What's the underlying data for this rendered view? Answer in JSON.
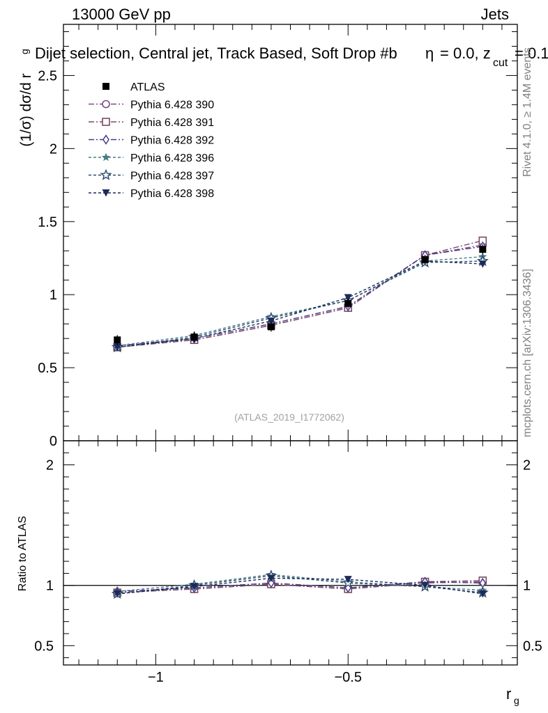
{
  "header": {
    "left": "13000 GeV pp",
    "right": "Jets",
    "subtitle": "Dijet selection, Central jet, Track Based, Soft Drop #b",
    "subtitle_cont": "= 0.0, z",
    "subtitle_sub": "cut",
    "subtitle_end": "= 0.1",
    "beta_symbol": "η"
  },
  "side_labels": {
    "rivet": "Rivet 4.1.0, ≥ 1.4M events",
    "mcplots": "mcplots.cern.ch [arXiv:1306.3436]"
  },
  "analysis_id": "(ATLAS_2019_I1772062)",
  "colors": {
    "atlas": "#000000",
    "p390": "#7a4a86",
    "p391": "#7a4a66",
    "p392": "#4a3a86",
    "p396": "#4a7a86",
    "p397": "#2a4a6a",
    "p398": "#1a2a5a",
    "ref_line": "#000000"
  },
  "chart_data": [
    {
      "type": "line",
      "panel": "main",
      "ylabel_main": "(1/σ) dσ/d r",
      "ylabel_sub": "g",
      "xlim": [
        -1.24,
        -0.06
      ],
      "ylim": [
        0,
        2.85
      ],
      "yticks": [
        0,
        0.5,
        1,
        1.5,
        2,
        2.5
      ],
      "ytick_labels": [
        "0",
        "0.5",
        "1",
        "1.5",
        "2",
        "2.5"
      ],
      "x": [
        -1.1,
        -0.9,
        -0.7,
        -0.5,
        -0.3,
        -0.15
      ],
      "series": [
        {
          "name": "ATLAS",
          "key": "atlas",
          "marker": "square-filled",
          "dash": "none",
          "values": [
            0.69,
            0.71,
            0.78,
            0.94,
            1.24,
            1.31
          ]
        },
        {
          "name": "Pythia 6.428 390",
          "key": "p390",
          "marker": "circle-open",
          "dash": "8,3,2,3",
          "values": [
            0.65,
            0.69,
            0.79,
            0.91,
            1.27,
            1.34
          ]
        },
        {
          "name": "Pythia 6.428 391",
          "key": "p391",
          "marker": "square-open",
          "dash": "8,3,2,3",
          "values": [
            0.64,
            0.69,
            0.79,
            0.91,
            1.27,
            1.37
          ]
        },
        {
          "name": "Pythia 6.428 392",
          "key": "p392",
          "marker": "diamond-open",
          "dash": "8,3,2,3",
          "values": [
            0.65,
            0.7,
            0.8,
            0.92,
            1.27,
            1.33
          ]
        },
        {
          "name": "Pythia 6.428 396",
          "key": "p396",
          "marker": "star-filled",
          "dash": "4,3",
          "values": [
            0.65,
            0.72,
            0.85,
            0.96,
            1.23,
            1.26
          ]
        },
        {
          "name": "Pythia 6.428 397",
          "key": "p397",
          "marker": "star-open",
          "dash": "4,3",
          "values": [
            0.64,
            0.71,
            0.84,
            0.96,
            1.22,
            1.23
          ]
        },
        {
          "name": "Pythia 6.428 398",
          "key": "p398",
          "marker": "triangle-down-filled",
          "dash": "4,3",
          "values": [
            0.64,
            0.7,
            0.82,
            0.98,
            1.23,
            1.21
          ]
        }
      ]
    },
    {
      "type": "line",
      "panel": "ratio",
      "ylabel": "Ratio to ATLAS",
      "xlabel_main": "r",
      "xlabel_sub": "g",
      "xlim": [
        -1.24,
        -0.06
      ],
      "ylim": [
        0.34,
        2.2
      ],
      "yticks": [
        0.5,
        1,
        2
      ],
      "ytick_labels": [
        "0.5",
        "1",
        "2"
      ],
      "xticks": [
        -1,
        -0.5
      ],
      "xtick_labels": [
        "−1",
        "−0.5"
      ],
      "reference": 1,
      "x": [
        -1.1,
        -0.9,
        -0.7,
        -0.5,
        -0.3,
        -0.15
      ],
      "series": [
        {
          "name": "Pythia 6.428 390",
          "key": "p390",
          "values": [
            0.94,
            0.97,
            1.01,
            0.97,
            1.02,
            1.03
          ]
        },
        {
          "name": "Pythia 6.428 391",
          "key": "p391",
          "values": [
            0.94,
            0.97,
            1.01,
            0.97,
            1.03,
            1.04
          ]
        },
        {
          "name": "Pythia 6.428 392",
          "key": "p392",
          "values": [
            0.95,
            0.98,
            1.02,
            0.98,
            1.03,
            1.02
          ]
        },
        {
          "name": "Pythia 6.428 396",
          "key": "p396",
          "values": [
            0.95,
            1.01,
            1.09,
            1.03,
            0.99,
            0.96
          ]
        },
        {
          "name": "Pythia 6.428 397",
          "key": "p397",
          "values": [
            0.93,
            1.0,
            1.08,
            1.02,
            0.99,
            0.94
          ]
        },
        {
          "name": "Pythia 6.428 398",
          "key": "p398",
          "values": [
            0.93,
            0.99,
            1.06,
            1.05,
            1.0,
            0.93
          ]
        }
      ]
    }
  ]
}
